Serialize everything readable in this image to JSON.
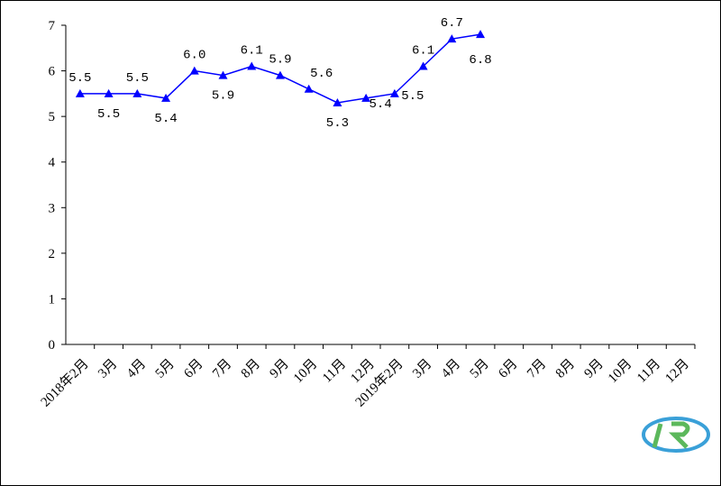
{
  "chart_data": {
    "type": "line",
    "categories": [
      "2018年2月",
      "3月",
      "4月",
      "5月",
      "6月",
      "7月",
      "8月",
      "9月",
      "10月",
      "11月",
      "12月",
      "2019年2月",
      "3月",
      "4月",
      "5月",
      "6月",
      "7月",
      "8月",
      "9月",
      "10月",
      "11月",
      "12月"
    ],
    "values": [
      5.5,
      5.5,
      5.5,
      5.4,
      6.0,
      5.9,
      6.1,
      5.9,
      5.6,
      5.3,
      5.4,
      5.5,
      6.1,
      6.7,
      6.8,
      null,
      null,
      null,
      null,
      null,
      null,
      null
    ],
    "value_labels": [
      "5.5",
      "5.5",
      "5.5",
      "5.4",
      "6.0",
      "5.9",
      "6.1",
      "5.9",
      "5.6",
      "5.3",
      "5.4",
      "5.5",
      "6.1",
      "6.7",
      "6.8",
      null,
      null,
      null,
      null,
      null,
      null,
      null
    ],
    "color": "#0000ff",
    "ylim": [
      0,
      7
    ],
    "yticks": [
      0,
      1,
      2,
      3,
      4,
      5,
      6,
      7
    ],
    "grid": false
  }
}
